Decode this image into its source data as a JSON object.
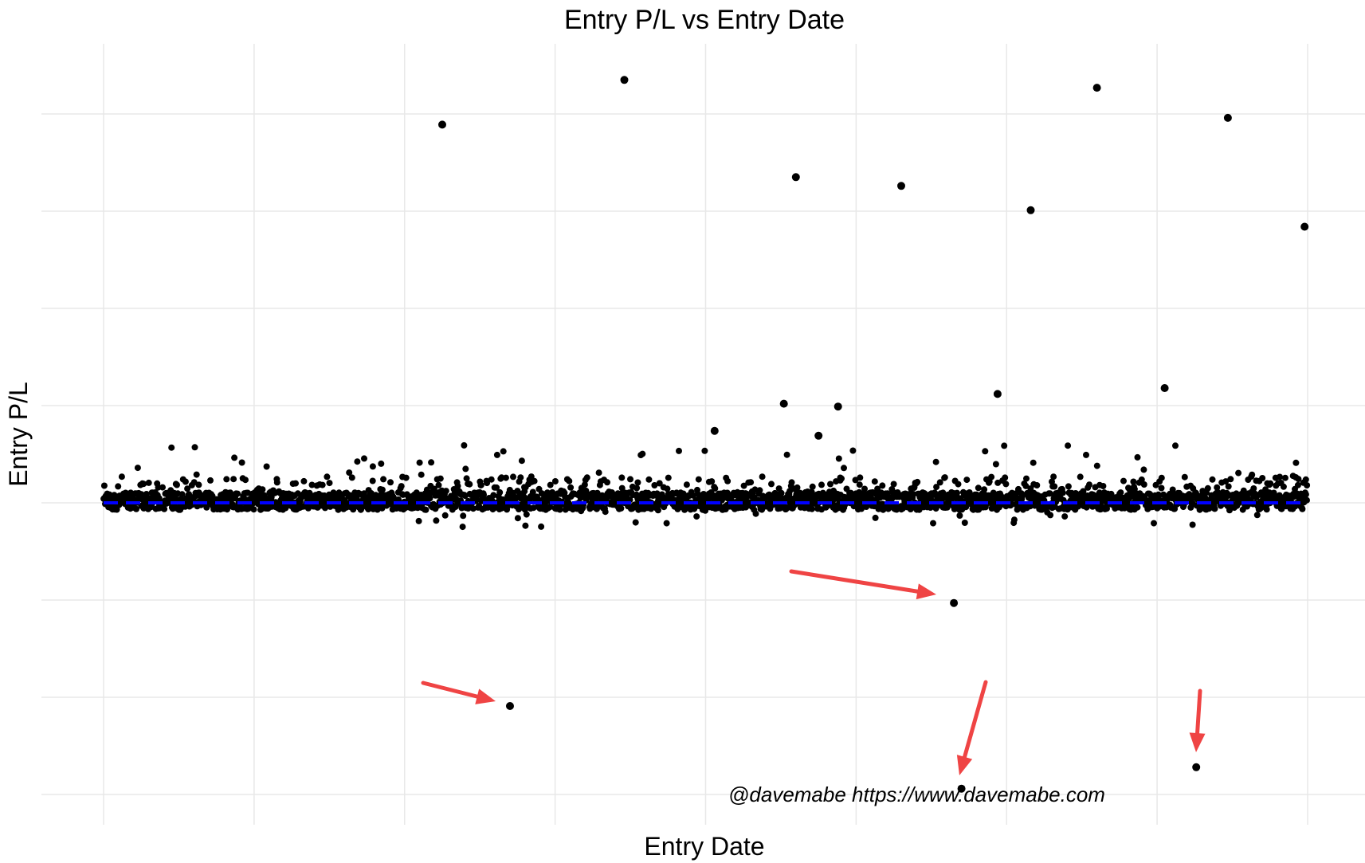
{
  "chart_data": {
    "type": "scatter",
    "title": "Entry P/L vs Entry Date",
    "xlabel": "Entry Date",
    "ylabel": "Entry P/L",
    "xlim": [
      0,
      8
    ],
    "ylim": [
      -3.3,
      4.7
    ],
    "x_grid": [
      0,
      1,
      2,
      3,
      4,
      5,
      6,
      7,
      8
    ],
    "y_grid": [
      -3,
      -2,
      -1,
      0,
      1,
      2,
      3,
      4
    ],
    "grid": true,
    "legend": "none",
    "point_color": "#000000",
    "reference_line": {
      "y": 0,
      "style": "dashed",
      "color": "#0000ff"
    },
    "outliers": [
      {
        "x": 2.25,
        "y": 3.89
      },
      {
        "x": 3.46,
        "y": 4.35
      },
      {
        "x": 4.6,
        "y": 3.35
      },
      {
        "x": 5.3,
        "y": 3.26
      },
      {
        "x": 6.16,
        "y": 3.01
      },
      {
        "x": 6.6,
        "y": 4.27
      },
      {
        "x": 7.47,
        "y": 3.96
      },
      {
        "x": 7.98,
        "y": 2.84
      },
      {
        "x": 4.52,
        "y": 1.02
      },
      {
        "x": 4.88,
        "y": 0.99
      },
      {
        "x": 5.94,
        "y": 1.12
      },
      {
        "x": 7.05,
        "y": 1.18
      },
      {
        "x": 4.06,
        "y": 0.74
      },
      {
        "x": 4.75,
        "y": 0.69
      },
      {
        "x": 5.65,
        "y": -1.03
      },
      {
        "x": 2.7,
        "y": -2.09
      },
      {
        "x": 5.7,
        "y": -2.94
      },
      {
        "x": 7.26,
        "y": -2.72
      }
    ],
    "cluster": {
      "y_range": [
        -0.25,
        0.6
      ],
      "count": 2600
    },
    "annotations": {
      "watermark": "@davemabe https://www.davemabe.com",
      "arrow_color": "#ef4444"
    }
  }
}
